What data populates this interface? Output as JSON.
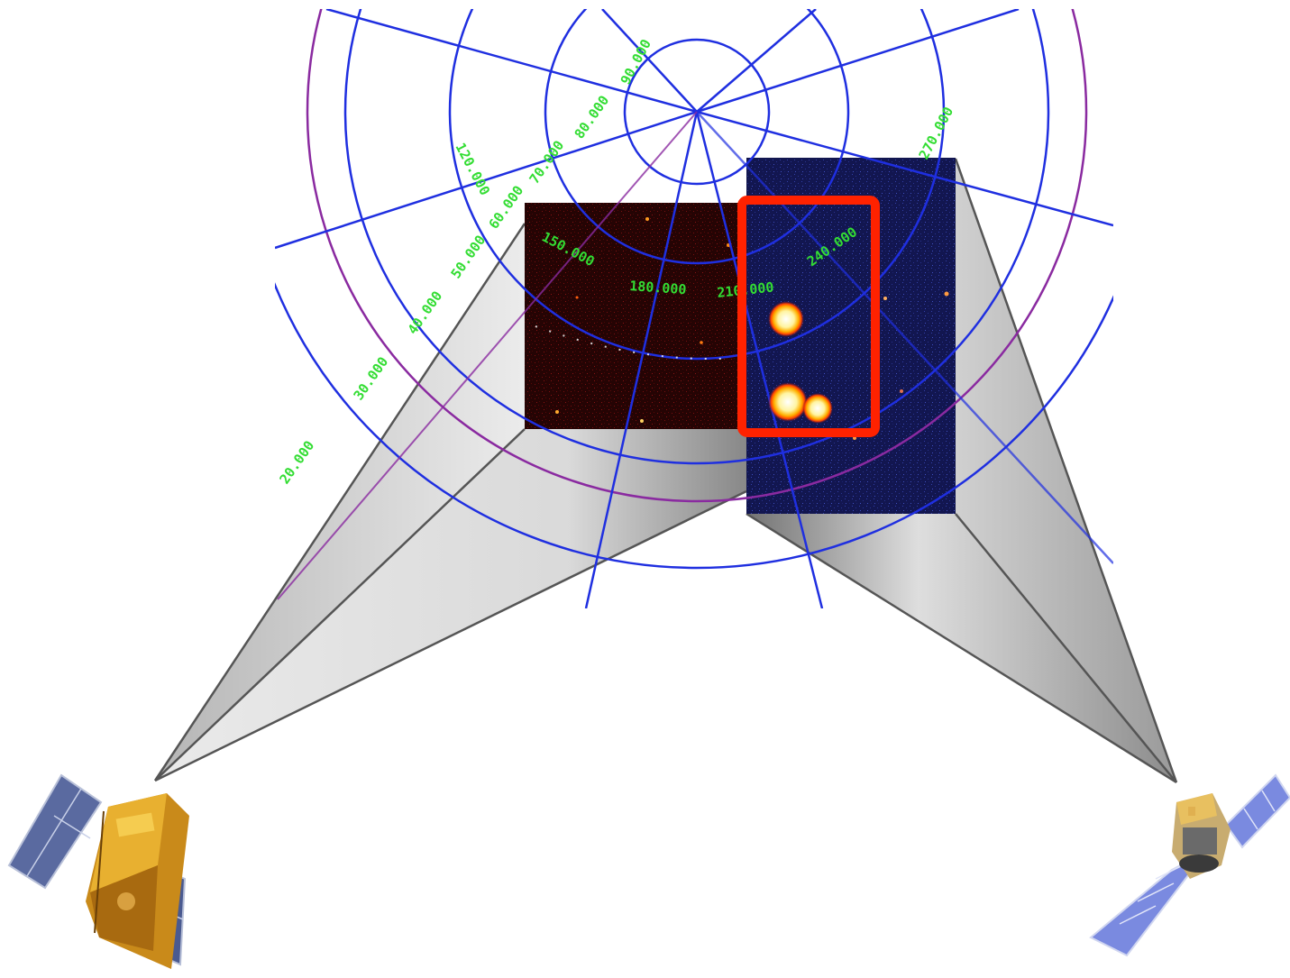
{
  "diagram": {
    "grid_labels": {
      "lat_120": "120.000",
      "lat_90": "90.000",
      "lat_80": "80.000",
      "lat_70": "70.000",
      "lat_60": "60.000",
      "lat_50": "50.000",
      "lat_40": "40.000",
      "lat_30": "30.000",
      "lat_20": "20.000",
      "lon_150": "150.000",
      "lon_180": "180.000",
      "lon_210": "210.000",
      "lon_240": "240.000",
      "lon_270": "270.000"
    },
    "colors": {
      "grid_line": "#1f2fe0",
      "ecliptic_line": "#8a2aa0",
      "grid_label": "#33dd33",
      "left_panel": "#2a0505",
      "right_panel": "#15185a",
      "highlight_box": "#ff2200",
      "source_core": "#fff6c0",
      "source_ring": "#ff5a00"
    },
    "icons": {
      "left_satellite": "satellite-gold-icon",
      "right_satellite": "satellite-blue-panels-icon"
    }
  }
}
